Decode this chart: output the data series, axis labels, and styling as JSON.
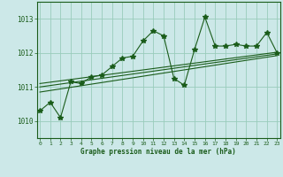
{
  "xlabel": "Graphe pression niveau de la mer (hPa)",
  "bg_color": "#cce8e8",
  "line_color": "#1a5c1a",
  "grid_color": "#99ccbb",
  "x_values": [
    0,
    1,
    2,
    3,
    4,
    5,
    6,
    7,
    8,
    9,
    10,
    11,
    12,
    13,
    14,
    15,
    16,
    17,
    18,
    19,
    20,
    21,
    22,
    23
  ],
  "y_values": [
    1010.3,
    1010.55,
    1010.1,
    1011.15,
    1011.1,
    1011.3,
    1011.35,
    1011.6,
    1011.85,
    1011.9,
    1012.35,
    1012.65,
    1012.5,
    1011.25,
    1011.05,
    1012.1,
    1013.05,
    1012.2,
    1012.2,
    1012.25,
    1012.2,
    1012.2,
    1012.6,
    1012.0
  ],
  "trend_lines": [
    {
      "x0": 0,
      "y0": 1010.85,
      "x1": 23,
      "y1": 1011.92
    },
    {
      "x0": 0,
      "y0": 1011.0,
      "x1": 23,
      "y1": 1011.97
    },
    {
      "x0": 0,
      "y0": 1011.1,
      "x1": 23,
      "y1": 1012.02
    }
  ],
  "ylim": [
    1009.5,
    1013.5
  ],
  "yticks": [
    1010,
    1011,
    1012,
    1013
  ],
  "xticks": [
    0,
    1,
    2,
    3,
    4,
    5,
    6,
    7,
    8,
    9,
    10,
    11,
    12,
    13,
    14,
    15,
    16,
    17,
    18,
    19,
    20,
    21,
    22,
    23
  ],
  "xlim": [
    -0.3,
    23.3
  ]
}
